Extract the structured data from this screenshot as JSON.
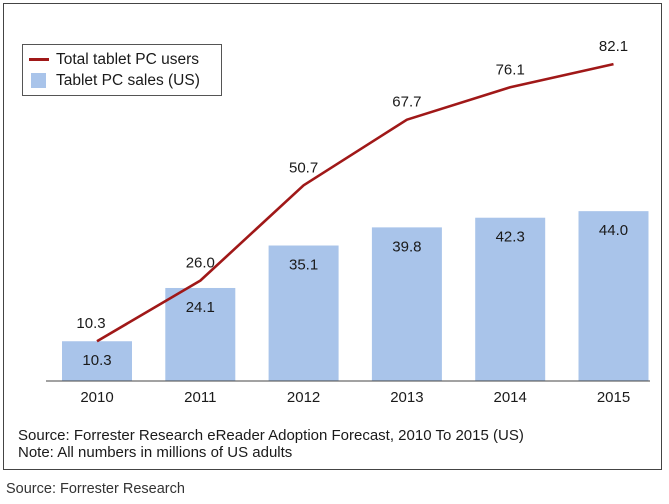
{
  "chart_data": {
    "type": "bar",
    "categories": [
      "2010",
      "2011",
      "2012",
      "2013",
      "2014",
      "2015"
    ],
    "series": [
      {
        "name": "Tablet PC sales (US)",
        "kind": "bar",
        "values": [
          10.3,
          24.1,
          35.1,
          39.8,
          42.3,
          44.0
        ],
        "labels": [
          "10.3",
          "24.1",
          "35.1",
          "39.8",
          "42.3",
          "44.0"
        ],
        "color": "#a9c4ea"
      },
      {
        "name": "Total tablet PC users",
        "kind": "line",
        "values": [
          10.3,
          26.0,
          50.7,
          67.7,
          76.1,
          82.1
        ],
        "labels": [
          "10.3",
          "26.0",
          "50.7",
          "67.7",
          "76.1",
          "82.1"
        ],
        "color": "#a01818"
      }
    ],
    "ylim": [
      0,
      90
    ],
    "grid": false,
    "legend_position": "top-left",
    "footnotes": [
      "Source: Forrester Research eReader Adoption Forecast, 2010 To 2015 (US)",
      "Note: All numbers in millions of US adults"
    ]
  },
  "outer_source": "Source: Forrester Research"
}
